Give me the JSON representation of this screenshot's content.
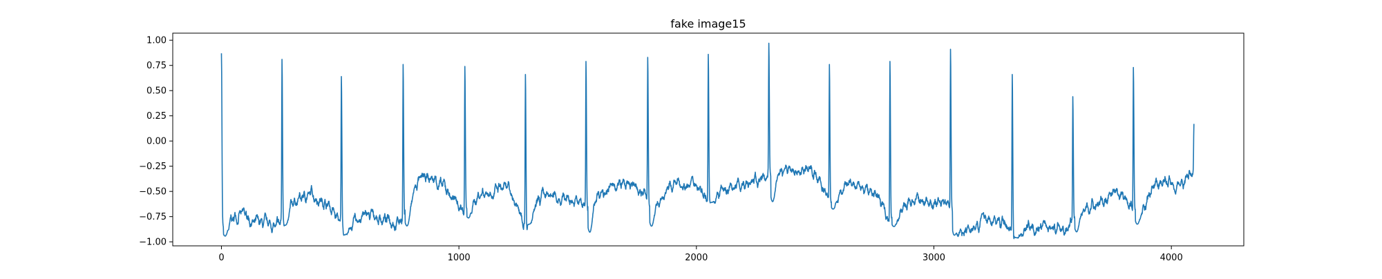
{
  "chart_data": {
    "type": "line",
    "title": "fake image15",
    "xlabel": "",
    "ylabel": "",
    "xlim": [
      -205,
      4305
    ],
    "ylim": [
      -1.04,
      1.07
    ],
    "xticks": [
      0,
      1000,
      2000,
      3000,
      4000
    ],
    "yticks": [
      1.0,
      0.75,
      0.5,
      0.25,
      0.0,
      -0.25,
      -0.5,
      -0.75,
      -1.0
    ],
    "ytick_labels": [
      "1.00",
      "0.75",
      "0.50",
      "0.25",
      "0.00",
      "−0.25",
      "−0.50",
      "−0.75",
      "−1.00"
    ],
    "grid": false,
    "legend": "none",
    "series": [
      {
        "color": "#1f77b4",
        "x_start": 0,
        "x_end": 4095,
        "base_level_points": [
          [
            0,
            -0.88
          ],
          [
            80,
            -0.72
          ],
          [
            160,
            -0.84
          ],
          [
            240,
            -0.86
          ],
          [
            300,
            -0.62
          ],
          [
            380,
            -0.52
          ],
          [
            450,
            -0.62
          ],
          [
            520,
            -0.9
          ],
          [
            600,
            -0.74
          ],
          [
            700,
            -0.78
          ],
          [
            760,
            -0.78
          ],
          [
            830,
            -0.4
          ],
          [
            900,
            -0.38
          ],
          [
            960,
            -0.52
          ],
          [
            1020,
            -0.7
          ],
          [
            1100,
            -0.5
          ],
          [
            1200,
            -0.48
          ],
          [
            1290,
            -0.8
          ],
          [
            1350,
            -0.58
          ],
          [
            1450,
            -0.55
          ],
          [
            1540,
            -0.66
          ],
          [
            1600,
            -0.48
          ],
          [
            1700,
            -0.44
          ],
          [
            1780,
            -0.5
          ],
          [
            1800,
            -0.68
          ],
          [
            1900,
            -0.44
          ],
          [
            2000,
            -0.42
          ],
          [
            2040,
            -0.52
          ],
          [
            2100,
            -0.52
          ],
          [
            2200,
            -0.42
          ],
          [
            2280,
            -0.38
          ],
          [
            2320,
            -0.3
          ],
          [
            2400,
            -0.28
          ],
          [
            2500,
            -0.3
          ],
          [
            2560,
            -0.62
          ],
          [
            2650,
            -0.44
          ],
          [
            2750,
            -0.52
          ],
          [
            2820,
            -0.8
          ],
          [
            2900,
            -0.6
          ],
          [
            3000,
            -0.6
          ],
          [
            3060,
            -0.6
          ],
          [
            3100,
            -0.92
          ],
          [
            3200,
            -0.76
          ],
          [
            3300,
            -0.82
          ],
          [
            3340,
            -0.92
          ],
          [
            3400,
            -0.82
          ],
          [
            3500,
            -0.86
          ],
          [
            3560,
            -0.88
          ],
          [
            3600,
            -0.7
          ],
          [
            3700,
            -0.6
          ],
          [
            3800,
            -0.56
          ],
          [
            3860,
            -0.7
          ],
          [
            3950,
            -0.42
          ],
          [
            4050,
            -0.4
          ],
          [
            4095,
            -0.28
          ]
        ],
        "spikes": [
          {
            "x": 0,
            "peak": 0.87,
            "trough": -0.95
          },
          {
            "x": 255,
            "peak": 0.81,
            "trough": -0.84
          },
          {
            "x": 505,
            "peak": 0.64,
            "trough": -0.93
          },
          {
            "x": 765,
            "peak": 0.76,
            "trough": -0.85
          },
          {
            "x": 1025,
            "peak": 0.74,
            "trough": -0.77
          },
          {
            "x": 1280,
            "peak": 0.66,
            "trough": -0.83
          },
          {
            "x": 1535,
            "peak": 0.79,
            "trough": -0.92
          },
          {
            "x": 1795,
            "peak": 0.83,
            "trough": -0.85
          },
          {
            "x": 2050,
            "peak": 0.86,
            "trough": -0.61
          },
          {
            "x": 2305,
            "peak": 0.97,
            "trough": -0.62
          },
          {
            "x": 2560,
            "peak": 0.76,
            "trough": -0.68
          },
          {
            "x": 2815,
            "peak": 0.79,
            "trough": -0.85
          },
          {
            "x": 3070,
            "peak": 0.91,
            "trough": -0.94
          },
          {
            "x": 3330,
            "peak": 0.66,
            "trough": -0.96
          },
          {
            "x": 3585,
            "peak": 0.44,
            "trough": -0.91
          },
          {
            "x": 3840,
            "peak": 0.73,
            "trough": -0.83
          },
          {
            "x": 4095,
            "peak": 0.17,
            "trough": -0.62
          }
        ]
      }
    ]
  }
}
